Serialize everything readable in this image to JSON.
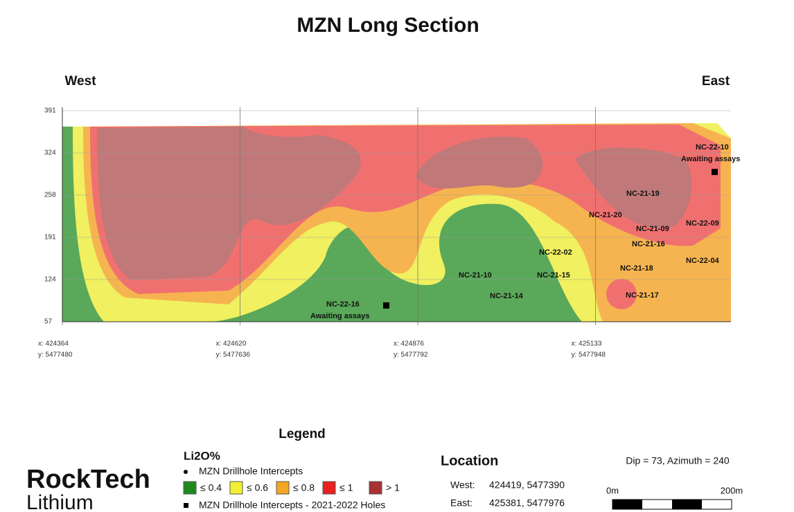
{
  "header": {
    "title": "MZN Long Section",
    "west": "West",
    "east": "East"
  },
  "y_axis": {
    "ticks": [
      391,
      324,
      258,
      191,
      124,
      57
    ]
  },
  "x_axis": {
    "ticks": [
      {
        "x": "x: 424364",
        "y": "y: 5477480"
      },
      {
        "x": "x: 424620",
        "y": "y: 5477636"
      },
      {
        "x": "x: 424876",
        "y": "y: 5477792"
      },
      {
        "x": "x: 425133",
        "y": "y: 5477948"
      }
    ]
  },
  "holes": [
    {
      "label": "NC-22-10",
      "note": "Awaiting assays"
    },
    {
      "label": "NC-21-19"
    },
    {
      "label": "NC-21-20"
    },
    {
      "label": "NC-21-09"
    },
    {
      "label": "NC-22-09"
    },
    {
      "label": "NC-21-16"
    },
    {
      "label": "NC-22-02"
    },
    {
      "label": "NC-21-18"
    },
    {
      "label": "NC-22-04"
    },
    {
      "label": "NC-21-10"
    },
    {
      "label": "NC-21-15"
    },
    {
      "label": "NC-21-14"
    },
    {
      "label": "NC-21-17"
    },
    {
      "label": "NC-22-16",
      "note": "Awaiting assays"
    }
  ],
  "legend": {
    "title": "Legend",
    "unit": "Li2O%",
    "intercepts": "MZN Drillhole Intercepts",
    "classes": [
      "≤ 0.4",
      "≤ 0.6",
      "≤ 0.8",
      "≤ 1",
      "> 1"
    ],
    "new_holes": "MZN Drillhole Intercepts  - 2021-2022 Holes"
  },
  "location": {
    "title": "Location",
    "rows": [
      [
        "West:",
        "424419, 5477390"
      ],
      [
        "East:",
        "425381, 5477976"
      ]
    ],
    "orientation": "Dip = 73, Azimuth = 240",
    "scale": [
      "0m",
      "200m"
    ]
  },
  "logo": {
    "name": "RockTech",
    "sub": "Lithium"
  }
}
